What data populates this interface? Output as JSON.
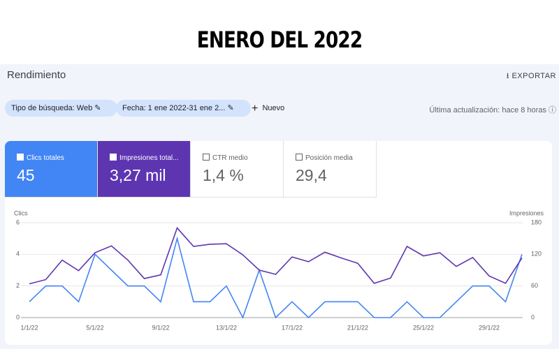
{
  "heading": "ENERO DEL 2022",
  "header": {
    "title": "Rendimiento",
    "export": "EXPORTAR"
  },
  "filters": [
    "Tipo de búsqueda: Web",
    "Fecha: 1 ene 2022-31 ene 2..."
  ],
  "new": "Nuevo",
  "last_update": "Última actualización: hace 8 horas",
  "metrics": [
    {
      "label": "Clics totales",
      "value": "45"
    },
    {
      "label": "Impresiones total...",
      "value": "3,27 mil"
    },
    {
      "label": "CTR medio",
      "value": "1,4 %"
    },
    {
      "label": "Posición media",
      "value": "29,4"
    }
  ],
  "chart_data": {
    "type": "line",
    "y_label": "Clics",
    "y2_label": "Impresiones",
    "categories": [
      "1/1/22",
      null,
      null,
      null,
      "5/1/22",
      null,
      null,
      null,
      "9/1/22",
      null,
      null,
      null,
      "13/1/22",
      null,
      null,
      null,
      "17/1/22",
      null,
      null,
      null,
      "21/1/22",
      null,
      null,
      null,
      "25/1/22",
      null,
      null,
      null,
      "29/1/22",
      null,
      null
    ],
    "ylim": [
      0,
      6
    ],
    "yticks": [
      0,
      2,
      4,
      6
    ],
    "y2lim": [
      0,
      180
    ],
    "y2ticks": [
      0,
      60,
      120,
      180
    ],
    "grid": true,
    "series": [
      {
        "color": "#4285f4",
        "values": [
          1,
          2,
          2,
          1,
          4,
          3,
          2,
          2,
          1,
          5,
          1,
          1,
          2,
          0,
          3,
          0,
          1,
          0,
          1,
          1,
          1,
          0,
          0,
          1,
          0,
          0,
          1,
          2,
          2,
          1,
          4
        ]
      },
      {
        "color": "#5e35b1",
        "axis": "y2",
        "values": [
          64,
          72,
          109,
          89,
          123,
          136,
          109,
          74,
          81,
          170,
          135,
          139,
          140,
          119,
          90,
          82,
          115,
          106,
          124,
          113,
          103,
          65,
          75,
          135,
          117,
          123,
          97,
          114,
          79,
          65,
          113
        ]
      }
    ]
  }
}
